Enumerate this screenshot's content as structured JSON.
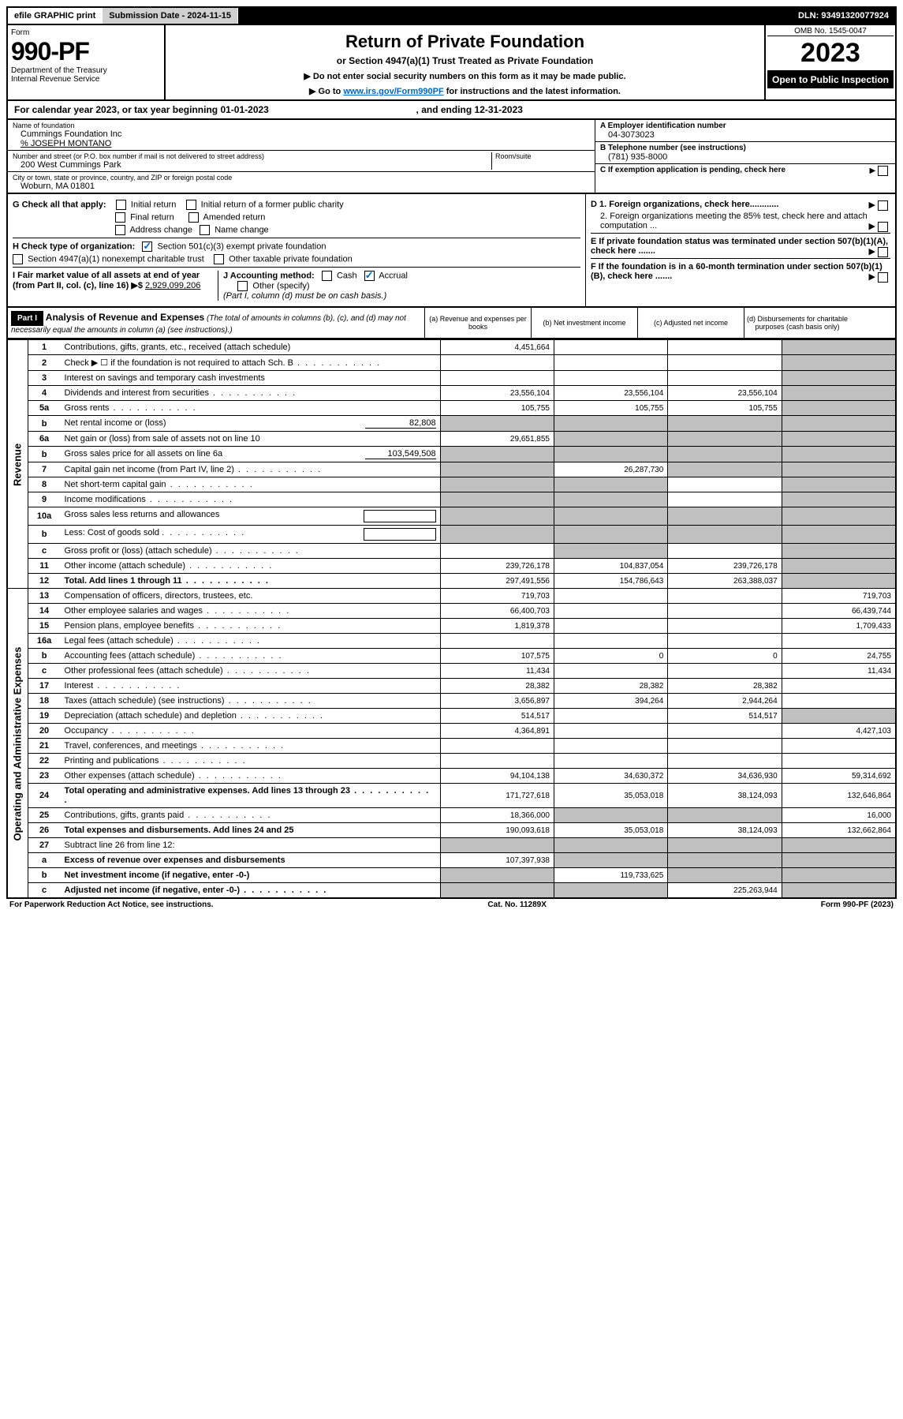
{
  "topbar": {
    "efile": "efile GRAPHIC print",
    "submission": "Submission Date - 2024-11-15",
    "dln": "DLN: 93491320077924"
  },
  "header": {
    "form_label": "Form",
    "form_no": "990-PF",
    "dept": "Department of the Treasury",
    "irs": "Internal Revenue Service",
    "title": "Return of Private Foundation",
    "subtitle": "or Section 4947(a)(1) Trust Treated as Private Foundation",
    "note1": "▶ Do not enter social security numbers on this form as it may be made public.",
    "note2_a": "▶ Go to ",
    "note2_link": "www.irs.gov/Form990PF",
    "note2_b": " for instructions and the latest information.",
    "omb": "OMB No. 1545-0047",
    "year": "2023",
    "inspection": "Open to Public Inspection"
  },
  "calyear": {
    "text_a": "For calendar year 2023, or tax year beginning ",
    "begin": "01-01-2023",
    "text_b": " , and ending ",
    "end": "12-31-2023"
  },
  "entity": {
    "name_lbl": "Name of foundation",
    "name": "Cummings Foundation Inc",
    "co": "% JOSEPH MONTANO",
    "addr_lbl": "Number and street (or P.O. box number if mail is not delivered to street address)",
    "addr": "200 West Cummings Park",
    "room_lbl": "Room/suite",
    "city_lbl": "City or town, state or province, country, and ZIP or foreign postal code",
    "city": "Woburn, MA  01801",
    "ein_lbl": "A Employer identification number",
    "ein": "04-3073023",
    "tel_lbl": "B Telephone number (see instructions)",
    "tel": "(781) 935-8000",
    "c_lbl": "C If exemption application is pending, check here"
  },
  "checks": {
    "g_lbl": "G Check all that apply:",
    "initial": "Initial return",
    "initial_former": "Initial return of a former public charity",
    "final": "Final return",
    "amended": "Amended return",
    "addr_change": "Address change",
    "name_change": "Name change",
    "h_lbl": "H Check type of organization:",
    "h_501c3": "Section 501(c)(3) exempt private foundation",
    "h_4947": "Section 4947(a)(1) nonexempt charitable trust",
    "h_other": "Other taxable private foundation",
    "i_lbl": "I Fair market value of all assets at end of year (from Part II, col. (c), line 16) ▶$",
    "i_val": "2,929,099,206",
    "j_lbl": "J Accounting method:",
    "j_cash": "Cash",
    "j_accrual": "Accrual",
    "j_other": "Other (specify)",
    "j_note": "(Part I, column (d) must be on cash basis.)",
    "d1": "D 1. Foreign organizations, check here............",
    "d2": "2. Foreign organizations meeting the 85% test, check here and attach computation ...",
    "e": "E If private foundation status was terminated under section 507(b)(1)(A), check here .......",
    "f": "F If the foundation is in a 60-month termination under section 507(b)(1)(B), check here ......."
  },
  "part1": {
    "label": "Part I",
    "title": "Analysis of Revenue and Expenses",
    "note": "(The total of amounts in columns (b), (c), and (d) may not necessarily equal the amounts in column (a) (see instructions).)",
    "col_a": "(a) Revenue and expenses per books",
    "col_b": "(b) Net investment income",
    "col_c": "(c) Adjusted net income",
    "col_d": "(d) Disbursements for charitable purposes (cash basis only)",
    "revenue_label": "Revenue",
    "expenses_label": "Operating and Administrative Expenses"
  },
  "rows": [
    {
      "n": "1",
      "desc": "Contributions, gifts, grants, etc., received (attach schedule)",
      "a": "4,451,664",
      "b": "",
      "c": "",
      "d": "",
      "d_grey": true
    },
    {
      "n": "2",
      "desc": "Check ▶ ☐ if the foundation is not required to attach Sch. B",
      "dotted": true,
      "a": "",
      "b": "",
      "c": "",
      "d": "",
      "d_grey": true
    },
    {
      "n": "3",
      "desc": "Interest on savings and temporary cash investments",
      "a": "",
      "b": "",
      "c": "",
      "d": "",
      "d_grey": true
    },
    {
      "n": "4",
      "desc": "Dividends and interest from securities",
      "dotted": true,
      "a": "23,556,104",
      "b": "23,556,104",
      "c": "23,556,104",
      "d": "",
      "d_grey": true
    },
    {
      "n": "5a",
      "desc": "Gross rents",
      "dotted": true,
      "a": "105,755",
      "b": "105,755",
      "c": "105,755",
      "d": "",
      "d_grey": true
    },
    {
      "n": "b",
      "desc": "Net rental income or (loss)",
      "inline": "82,808",
      "a": "",
      "b": "",
      "c": "",
      "d": "",
      "a_grey": true,
      "b_grey": true,
      "c_grey": true,
      "d_grey": true
    },
    {
      "n": "6a",
      "desc": "Net gain or (loss) from sale of assets not on line 10",
      "a": "29,651,855",
      "b": "",
      "c": "",
      "d": "",
      "b_grey": true,
      "c_grey": true,
      "d_grey": true
    },
    {
      "n": "b",
      "desc": "Gross sales price for all assets on line 6a",
      "inline": "103,549,508",
      "a": "",
      "b": "",
      "c": "",
      "d": "",
      "a_grey": true,
      "b_grey": true,
      "c_grey": true,
      "d_grey": true
    },
    {
      "n": "7",
      "desc": "Capital gain net income (from Part IV, line 2)",
      "dotted": true,
      "a": "",
      "b": "26,287,730",
      "c": "",
      "d": "",
      "a_grey": true,
      "c_grey": true,
      "d_grey": true
    },
    {
      "n": "8",
      "desc": "Net short-term capital gain",
      "dotted": true,
      "a": "",
      "b": "",
      "c": "",
      "d": "",
      "a_grey": true,
      "b_grey": true,
      "d_grey": true
    },
    {
      "n": "9",
      "desc": "Income modifications",
      "dotted": true,
      "a": "",
      "b": "",
      "c": "",
      "d": "",
      "a_grey": true,
      "b_grey": true,
      "d_grey": true
    },
    {
      "n": "10a",
      "desc": "Gross sales less returns and allowances",
      "box": true,
      "a": "",
      "b": "",
      "c": "",
      "d": "",
      "a_grey": true,
      "b_grey": true,
      "c_grey": true,
      "d_grey": true
    },
    {
      "n": "b",
      "desc": "Less: Cost of goods sold",
      "dotted": true,
      "box": true,
      "a": "",
      "b": "",
      "c": "",
      "d": "",
      "a_grey": true,
      "b_grey": true,
      "c_grey": true,
      "d_grey": true
    },
    {
      "n": "c",
      "desc": "Gross profit or (loss) (attach schedule)",
      "dotted": true,
      "a": "",
      "b": "",
      "c": "",
      "d": "",
      "b_grey": true,
      "d_grey": true
    },
    {
      "n": "11",
      "desc": "Other income (attach schedule)",
      "dotted": true,
      "a": "239,726,178",
      "b": "104,837,054",
      "c": "239,726,178",
      "d": "",
      "d_grey": true
    },
    {
      "n": "12",
      "desc": "Total. Add lines 1 through 11",
      "bold": true,
      "dotted": true,
      "a": "297,491,556",
      "b": "154,786,643",
      "c": "263,388,037",
      "d": "",
      "d_grey": true
    },
    {
      "n": "13",
      "desc": "Compensation of officers, directors, trustees, etc.",
      "a": "719,703",
      "b": "",
      "c": "",
      "d": "719,703"
    },
    {
      "n": "14",
      "desc": "Other employee salaries and wages",
      "dotted": true,
      "a": "66,400,703",
      "b": "",
      "c": "",
      "d": "66,439,744"
    },
    {
      "n": "15",
      "desc": "Pension plans, employee benefits",
      "dotted": true,
      "a": "1,819,378",
      "b": "",
      "c": "",
      "d": "1,709,433"
    },
    {
      "n": "16a",
      "desc": "Legal fees (attach schedule)",
      "dotted": true,
      "a": "",
      "b": "",
      "c": "",
      "d": ""
    },
    {
      "n": "b",
      "desc": "Accounting fees (attach schedule)",
      "dotted": true,
      "a": "107,575",
      "b": "0",
      "c": "0",
      "d": "24,755"
    },
    {
      "n": "c",
      "desc": "Other professional fees (attach schedule)",
      "dotted": true,
      "a": "11,434",
      "b": "",
      "c": "",
      "d": "11,434"
    },
    {
      "n": "17",
      "desc": "Interest",
      "dotted": true,
      "a": "28,382",
      "b": "28,382",
      "c": "28,382",
      "d": ""
    },
    {
      "n": "18",
      "desc": "Taxes (attach schedule) (see instructions)",
      "dotted": true,
      "a": "3,656,897",
      "b": "394,264",
      "c": "2,944,264",
      "d": ""
    },
    {
      "n": "19",
      "desc": "Depreciation (attach schedule) and depletion",
      "dotted": true,
      "a": "514,517",
      "b": "",
      "c": "514,517",
      "d": "",
      "d_grey": true
    },
    {
      "n": "20",
      "desc": "Occupancy",
      "dotted": true,
      "a": "4,364,891",
      "b": "",
      "c": "",
      "d": "4,427,103"
    },
    {
      "n": "21",
      "desc": "Travel, conferences, and meetings",
      "dotted": true,
      "a": "",
      "b": "",
      "c": "",
      "d": ""
    },
    {
      "n": "22",
      "desc": "Printing and publications",
      "dotted": true,
      "a": "",
      "b": "",
      "c": "",
      "d": ""
    },
    {
      "n": "23",
      "desc": "Other expenses (attach schedule)",
      "dotted": true,
      "a": "94,104,138",
      "b": "34,630,372",
      "c": "34,636,930",
      "d": "59,314,692"
    },
    {
      "n": "24",
      "desc": "Total operating and administrative expenses. Add lines 13 through 23",
      "bold": true,
      "dotted": true,
      "a": "171,727,618",
      "b": "35,053,018",
      "c": "38,124,093",
      "d": "132,646,864"
    },
    {
      "n": "25",
      "desc": "Contributions, gifts, grants paid",
      "dotted": true,
      "a": "18,366,000",
      "b": "",
      "c": "",
      "d": "16,000",
      "b_grey": true,
      "c_grey": true
    },
    {
      "n": "26",
      "desc": "Total expenses and disbursements. Add lines 24 and 25",
      "bold": true,
      "a": "190,093,618",
      "b": "35,053,018",
      "c": "38,124,093",
      "d": "132,662,864"
    },
    {
      "n": "27",
      "desc": "Subtract line 26 from line 12:",
      "a": "",
      "b": "",
      "c": "",
      "d": "",
      "a_grey": true,
      "b_grey": true,
      "c_grey": true,
      "d_grey": true
    },
    {
      "n": "a",
      "desc": "Excess of revenue over expenses and disbursements",
      "bold": true,
      "a": "107,397,938",
      "b": "",
      "c": "",
      "d": "",
      "b_grey": true,
      "c_grey": true,
      "d_grey": true
    },
    {
      "n": "b",
      "desc": "Net investment income (if negative, enter -0-)",
      "bold": true,
      "a": "",
      "b": "119,733,625",
      "c": "",
      "d": "",
      "a_grey": true,
      "c_grey": true,
      "d_grey": true
    },
    {
      "n": "c",
      "desc": "Adjusted net income (if negative, enter -0-)",
      "bold": true,
      "dotted": true,
      "a": "",
      "b": "",
      "c": "225,263,944",
      "d": "",
      "a_grey": true,
      "b_grey": true,
      "d_grey": true
    }
  ],
  "footer": {
    "left": "For Paperwork Reduction Act Notice, see instructions.",
    "center": "Cat. No. 11289X",
    "right": "Form 990-PF (2023)"
  }
}
